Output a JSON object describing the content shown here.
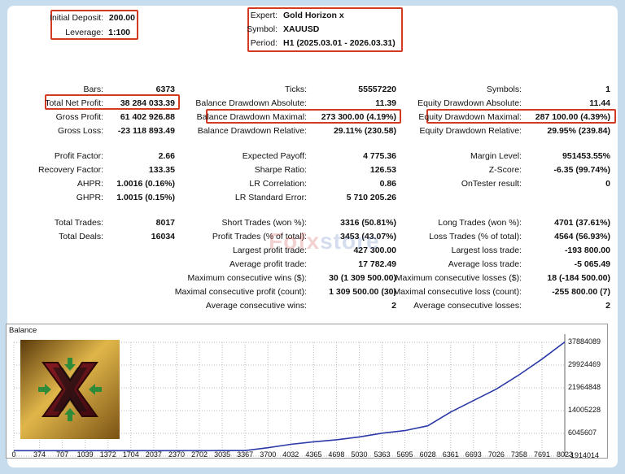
{
  "header": {
    "initial_deposit_label": "Initial Deposit:",
    "initial_deposit_value": "200.00",
    "leverage_label": "Leverage:",
    "leverage_value": "1:100",
    "expert_label": "Expert:",
    "expert_value": "Gold Horizon x",
    "symbol_label": "Symbol:",
    "symbol_value": "XAUUSD",
    "period_label": "Period:",
    "period_value": "H1 (2025.03.01 - 2026.03.31)"
  },
  "stats": {
    "bars_label": "Bars:",
    "bars_value": "6373",
    "ticks_label": "Ticks:",
    "ticks_value": "55557220",
    "symbols_label": "Symbols:",
    "symbols_value": "1",
    "net_profit_label": "Total Net Profit:",
    "net_profit_value": "38 284 033.39",
    "bal_dd_abs_label": "Balance Drawdown Absolute:",
    "bal_dd_abs_value": "11.39",
    "eq_dd_abs_label": "Equity Drawdown Absolute:",
    "eq_dd_abs_value": "11.44",
    "gross_profit_label": "Gross Profit:",
    "gross_profit_value": "61 402 926.88",
    "bal_dd_max_label": "Balance Drawdown Maximal:",
    "bal_dd_max_value": "273 300.00 (4.19%)",
    "eq_dd_max_label": "Equity Drawdown Maximal:",
    "eq_dd_max_value": "287 100.00 (4.39%)",
    "gross_loss_label": "Gross Loss:",
    "gross_loss_value": "-23 118 893.49",
    "bal_dd_rel_label": "Balance Drawdown Relative:",
    "bal_dd_rel_value": "29.11% (230.58)",
    "eq_dd_rel_label": "Equity Drawdown Relative:",
    "eq_dd_rel_value": "29.95% (239.84)",
    "profit_factor_label": "Profit Factor:",
    "profit_factor_value": "2.66",
    "expected_payoff_label": "Expected Payoff:",
    "expected_payoff_value": "4 775.36",
    "margin_level_label": "Margin Level:",
    "margin_level_value": "951453.55%",
    "recovery_factor_label": "Recovery Factor:",
    "recovery_factor_value": "133.35",
    "sharpe_label": "Sharpe Ratio:",
    "sharpe_value": "126.53",
    "zscore_label": "Z-Score:",
    "zscore_value": "-6.35 (99.74%)",
    "ahpr_label": "AHPR:",
    "ahpr_value": "1.0016 (0.16%)",
    "lr_corr_label": "LR Correlation:",
    "lr_corr_value": "0.86",
    "ontester_label": "OnTester result:",
    "ontester_value": "0",
    "ghpr_label": "GHPR:",
    "ghpr_value": "1.0015 (0.15%)",
    "lr_err_label": "LR Standard Error:",
    "lr_err_value": "5 710 205.26",
    "total_trades_label": "Total Trades:",
    "total_trades_value": "8017",
    "short_trades_label": "Short Trades (won %):",
    "short_trades_value": "3316 (50.81%)",
    "long_trades_label": "Long Trades (won %):",
    "long_trades_value": "4701 (37.61%)",
    "total_deals_label": "Total Deals:",
    "total_deals_value": "16034",
    "profit_trades_label": "Profit Trades (% of total):",
    "profit_trades_value": "3453 (43.07%)",
    "loss_trades_label": "Loss Trades (% of total):",
    "loss_trades_value": "4564 (56.93%)",
    "largest_profit_label": "Largest profit trade:",
    "largest_profit_value": "427 300.00",
    "largest_loss_label": "Largest loss trade:",
    "largest_loss_value": "-193 800.00",
    "avg_profit_label": "Average profit trade:",
    "avg_profit_value": "17 782.49",
    "avg_loss_label": "Average loss trade:",
    "avg_loss_value": "-5 065.49",
    "max_cons_wins_label": "Maximum consecutive wins ($):",
    "max_cons_wins_value": "30 (1 309 500.00)",
    "max_cons_losses_label": "Maximum consecutive losses ($):",
    "max_cons_losses_value": "18 (-184 500.00)",
    "maximal_cons_profit_label": "Maximal consecutive profit (count):",
    "maximal_cons_profit_value": "1 309 500.00 (30)",
    "maximal_cons_loss_label": "Maximal consecutive loss (count):",
    "maximal_cons_loss_value": "-255 800.00 (7)",
    "avg_cons_wins_label": "Average consecutive wins:",
    "avg_cons_wins_value": "2",
    "avg_cons_losses_label": "Average consecutive losses:",
    "avg_cons_losses_value": "2"
  },
  "watermark": {
    "part1": "Fofx",
    "part2": "store"
  },
  "colors": {
    "highlight": "#d23a22",
    "balance_line": "#2c3aa8",
    "grid": "#b8b8b8",
    "background": "#c7dcec"
  },
  "chart_data": {
    "type": "line",
    "title": "Balance",
    "series": [
      {
        "name": "",
        "x": [
          0,
          374,
          707,
          1039,
          1372,
          1704,
          2037,
          2370,
          2702,
          3035,
          3367,
          3700,
          4032,
          4365,
          4698,
          5030,
          5363,
          5695,
          6028,
          6361,
          6693,
          7026,
          7358,
          7691,
          8023
        ],
        "values": [
          200,
          300,
          500,
          800,
          1200,
          1700,
          2400,
          3200,
          4300,
          5700,
          7600,
          1000000,
          2200000,
          3100000,
          3800000,
          4800000,
          6100000,
          7000000,
          8700000,
          13500000,
          17500000,
          21500000,
          26500000,
          32000000,
          38000000
        ]
      }
    ],
    "x_ticks": [
      "0",
      "374",
      "707",
      "1039",
      "1372",
      "1704",
      "2037",
      "2370",
      "2702",
      "3035",
      "3367",
      "3700",
      "4032",
      "4365",
      "4698",
      "5030",
      "5363",
      "5695",
      "6028",
      "6361",
      "6693",
      "7026",
      "7358",
      "7691",
      "8023"
    ],
    "y_ticks": [
      "37884089",
      "29924469",
      "21964848",
      "14005228",
      "6045607",
      "-1914014"
    ],
    "ylim": [
      -1914014,
      37884089
    ],
    "xlim": [
      0,
      8023
    ],
    "grid": true
  }
}
